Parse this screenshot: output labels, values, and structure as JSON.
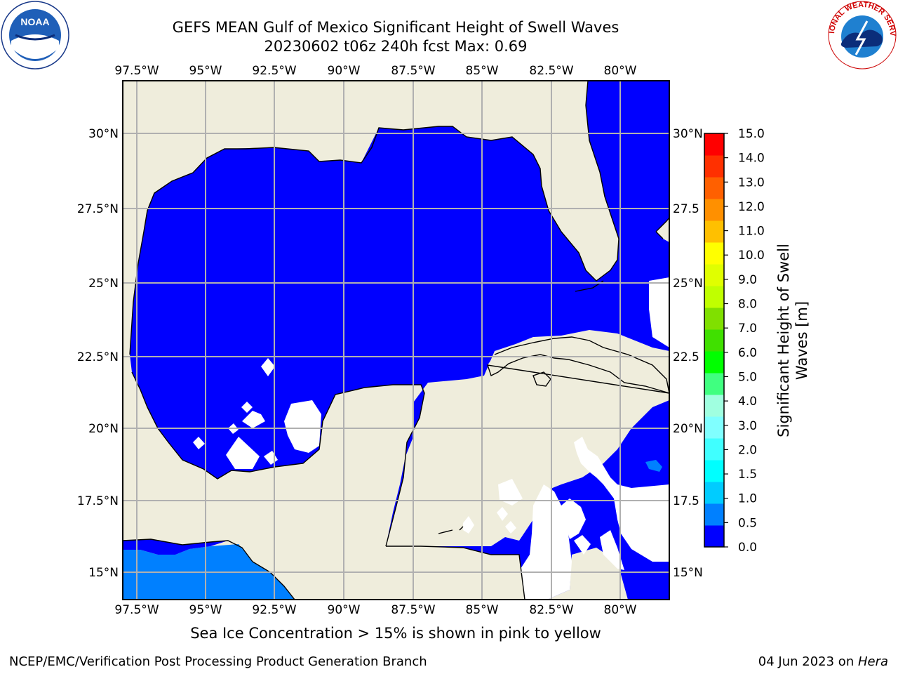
{
  "title": {
    "line1": "GEFS MEAN Gulf of Mexico Significant Height of Swell Waves",
    "line2": "20230602 t06z 240h fcst   Max: 0.69"
  },
  "logos": {
    "left": {
      "name": "noaa-logo",
      "text": "NOAA"
    },
    "right": {
      "name": "nws-logo",
      "text": "NATIONAL WEATHER SERVICE"
    }
  },
  "map": {
    "lon_ticks": [
      "97.5°W",
      "95°W",
      "92.5°W",
      "90°W",
      "87.5°W",
      "85°W",
      "82.5°W",
      "80°W"
    ],
    "lat_ticks": [
      "30°N",
      "27.5°N",
      "25°N",
      "22.5°N",
      "20°N",
      "17.5°N",
      "15°N"
    ],
    "lat_ticks_right": [
      "30°N",
      "27.5",
      "25°N",
      "22.5",
      "20°N",
      "17.5",
      "15°N"
    ],
    "colors": {
      "land": "#efeddc",
      "ocean_0": "#0000ff",
      "ocean_05": "#0080ff",
      "grid": "#b0b0b0",
      "coast": "#000000"
    }
  },
  "colorbar": {
    "label_line1": "Significant Height of Swell",
    "label_line2": "Waves [m]",
    "ticks": [
      "15.0",
      "14.0",
      "13.0",
      "12.0",
      "11.0",
      "10.0",
      "9.0",
      "8.0",
      "7.0",
      "6.0",
      "5.0",
      "4.0",
      "3.0",
      "2.0",
      "1.5",
      "1.0",
      "0.5",
      "0.0"
    ],
    "colors": [
      "#0000ff",
      "#0080ff",
      "#00ccff",
      "#00ffff",
      "#40ffff",
      "#80ffff",
      "#a0ffe0",
      "#40ff80",
      "#00ff00",
      "#40e000",
      "#80e000",
      "#c0ff00",
      "#e0ff00",
      "#ffff00",
      "#ffc000",
      "#ff9000",
      "#ff6000",
      "#ff3000",
      "#ff0000"
    ]
  },
  "subtitle": "Sea Ice Concentration > 15% is shown in pink to yellow",
  "footer": {
    "left": "NCEP/EMC/Verification Post Processing Product Generation Branch",
    "right_date": "04 Jun 2023 on ",
    "right_host": "Hera"
  }
}
